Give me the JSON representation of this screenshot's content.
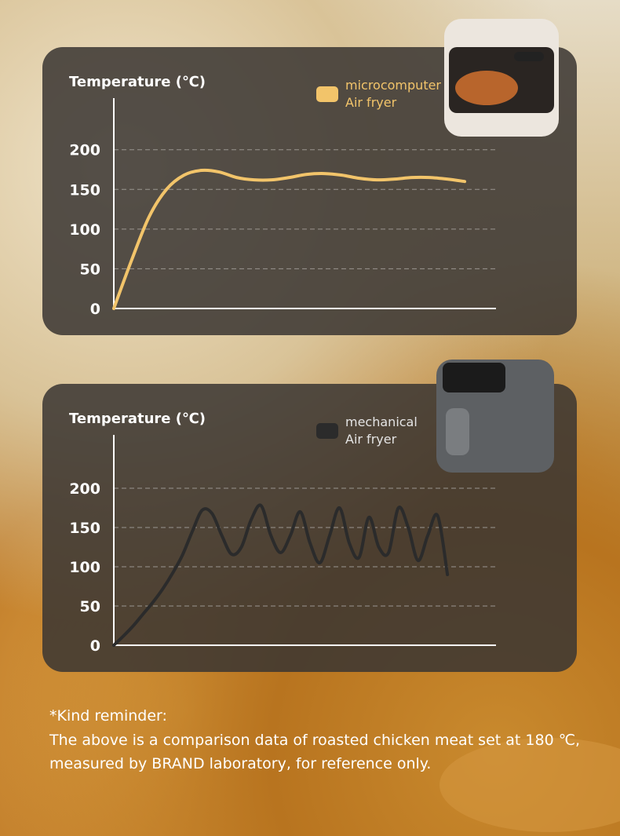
{
  "chart_data": [
    {
      "type": "line",
      "y_label": "Temperature (℃)",
      "categories": [
        null,
        null,
        null,
        null,
        null,
        null,
        null,
        null,
        null,
        null,
        null,
        null,
        null,
        null,
        null,
        null,
        null,
        null,
        null,
        null,
        null
      ],
      "series": [
        {
          "name": "microcomputer Air fryer",
          "color": "#f2c46a",
          "values": [
            0,
            60,
            115,
            150,
            168,
            174,
            172,
            165,
            162,
            162,
            165,
            169,
            170,
            168,
            164,
            162,
            163,
            165,
            165,
            163,
            160
          ]
        }
      ],
      "ylim": [
        0,
        265
      ],
      "yticks": [
        0,
        50,
        100,
        150,
        200
      ],
      "grid": true
    },
    {
      "type": "line",
      "y_label": "Temperature (℃)",
      "categories": [
        null,
        null,
        null,
        null,
        null,
        null,
        null,
        null,
        null,
        null,
        null,
        null,
        null,
        null,
        null,
        null,
        null,
        null,
        null,
        null,
        null,
        null,
        null,
        null,
        null,
        null,
        null,
        null,
        null,
        null,
        null,
        null,
        null,
        null,
        null
      ],
      "series": [
        {
          "name": "mechanical Air fryer",
          "color": "#2b2b2b",
          "values": [
            0,
            12,
            25,
            40,
            55,
            72,
            92,
            115,
            145,
            172,
            168,
            140,
            116,
            125,
            160,
            178,
            140,
            118,
            140,
            170,
            130,
            105,
            140,
            175,
            130,
            112,
            163,
            125,
            118,
            175,
            150,
            108,
            140,
            165,
            90
          ]
        }
      ],
      "ylim": [
        0,
        268
      ],
      "yticks": [
        0,
        50,
        100,
        150,
        200
      ],
      "grid": true
    }
  ],
  "footer": {
    "lines": [
      "*Kind reminder:",
      "The above is a comparison data of roasted chicken meat set at 180 ℃,",
      "measured by BRAND laboratory, for reference only."
    ]
  }
}
